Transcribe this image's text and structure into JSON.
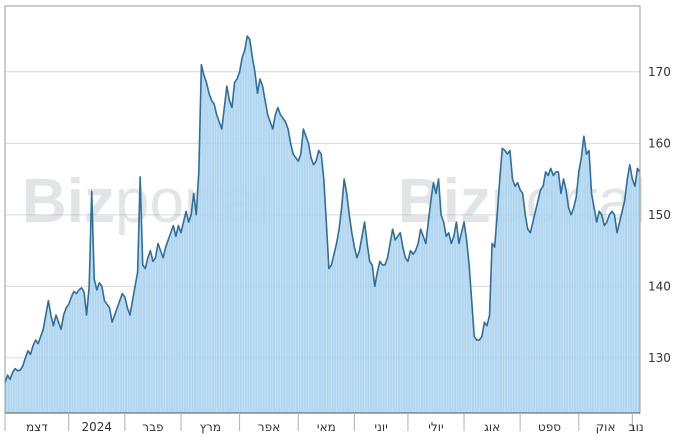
{
  "colors": {
    "line": "#2f6f9a",
    "fill": "#a9d1ee",
    "grid": "#d8d8d8",
    "axis": "#9a9a9a",
    "background": "#ffffff"
  },
  "watermark": {
    "bold": "Biz",
    "light": "portal"
  },
  "chart_data": {
    "type": "area",
    "title": "",
    "xlabel": "",
    "ylabel": "",
    "ylim": [
      122.3,
      179.2
    ],
    "y_axis_position": "right",
    "grid": "horizontal",
    "yticks": [
      130,
      140,
      150,
      160,
      170
    ],
    "month_labels": [
      "דצמ",
      "2024",
      "פבר",
      "מרץ",
      "אפר",
      "מאי",
      "יוני",
      "יולי",
      "אוג",
      "ספט",
      "אוק",
      "נוב"
    ],
    "month_label_index": [
      0,
      25,
      47,
      69,
      92,
      115,
      137,
      158,
      180,
      202,
      225,
      246
    ],
    "series": [
      {
        "values": [
          126.5,
          127.6,
          127.0,
          128.0,
          128.5,
          128.2,
          128.3,
          128.9,
          130.0,
          131.0,
          130.5,
          131.7,
          132.5,
          132.0,
          133.0,
          134.0,
          136.0,
          138.0,
          136.0,
          134.5,
          136.0,
          135.0,
          134.0,
          136.0,
          137.0,
          137.5,
          138.5,
          139.3,
          139.0,
          139.5,
          139.8,
          139.2,
          136.0,
          140.0,
          153.3,
          141.0,
          139.5,
          140.5,
          140.0,
          138.0,
          137.5,
          137.0,
          135.0,
          136.0,
          137.0,
          138.0,
          139.0,
          138.5,
          137.0,
          136.0,
          138.0,
          140.0,
          142.0,
          155.3,
          143.0,
          142.5,
          144.0,
          145.0,
          143.5,
          144.0,
          146.0,
          145.0,
          144.0,
          145.5,
          146.5,
          147.5,
          148.5,
          147.0,
          148.5,
          147.5,
          149.0,
          150.5,
          149.0,
          150.0,
          153.0,
          150.0,
          156.0,
          171.0,
          169.5,
          168.5,
          167.0,
          166.0,
          165.5,
          164.0,
          163.0,
          162.0,
          165.0,
          168.0,
          166.0,
          165.0,
          168.5,
          169.0,
          170.0,
          172.0,
          173.0,
          175.0,
          174.5,
          172.0,
          170.0,
          167.0,
          169.0,
          168.0,
          166.0,
          164.0,
          163.0,
          162.0,
          164.0,
          165.0,
          164.0,
          163.5,
          163.0,
          162.0,
          160.0,
          158.5,
          158.0,
          157.5,
          158.5,
          162.0,
          161.0,
          160.0,
          158.0,
          157.0,
          157.5,
          159.0,
          158.5,
          155.0,
          149.0,
          142.5,
          143.0,
          144.5,
          146.0,
          148.0,
          151.0,
          155.0,
          153.0,
          150.0,
          147.5,
          145.5,
          144.0,
          145.0,
          147.0,
          149.0,
          146.0,
          143.5,
          143.0,
          140.0,
          142.0,
          143.5,
          143.0,
          143.0,
          144.0,
          146.0,
          148.0,
          146.5,
          147.0,
          147.5,
          145.5,
          144.0,
          143.5,
          145.0,
          144.5,
          145.0,
          146.0,
          148.0,
          147.0,
          146.0,
          149.0,
          152.0,
          154.5,
          153.0,
          155.0,
          150.0,
          149.0,
          147.0,
          147.5,
          146.0,
          147.0,
          149.0,
          146.0,
          147.5,
          149.0,
          146.5,
          143.0,
          138.0,
          133.0,
          132.5,
          132.5,
          133.0,
          135.0,
          134.5,
          136.0,
          146.0,
          145.5,
          150.0,
          155.0,
          159.3,
          159.0,
          158.5,
          159.0,
          155.0,
          154.0,
          154.5,
          153.5,
          153.0,
          150.0,
          148.0,
          147.5,
          149.0,
          150.5,
          152.0,
          153.5,
          154.0,
          156.0,
          155.5,
          156.5,
          155.5,
          156.0,
          156.0,
          153.0,
          155.0,
          153.5,
          151.0,
          150.0,
          151.0,
          152.5,
          156.0,
          158.0,
          161.0,
          158.5,
          159.0,
          153.0,
          151.0,
          149.0,
          150.5,
          150.0,
          148.5,
          149.0,
          150.0,
          150.5,
          150.0,
          147.5,
          149.0,
          150.5,
          152.0,
          155.0,
          157.0,
          155.0,
          154.0,
          156.5,
          156.0
        ]
      }
    ]
  }
}
